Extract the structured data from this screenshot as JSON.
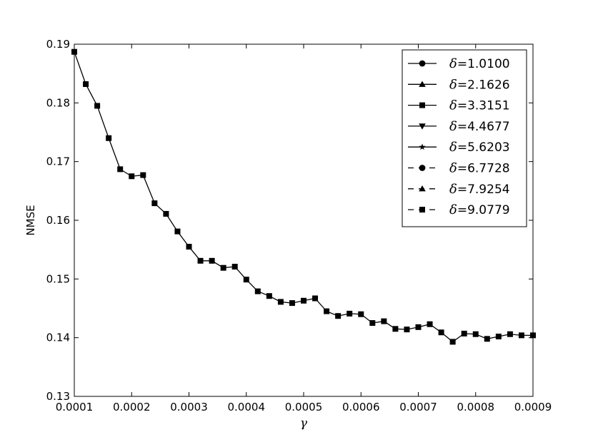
{
  "chart_data": {
    "type": "line",
    "title": "",
    "xlabel": "γ",
    "ylabel": "NMSE",
    "xlim": [
      0.0001,
      0.0009
    ],
    "ylim": [
      0.13,
      0.19
    ],
    "xticks": [
      "0.0001",
      "0.0002",
      "0.0003",
      "0.0004",
      "0.0005",
      "0.0006",
      "0.0007",
      "0.0008",
      "0.0009"
    ],
    "yticks": [
      "0.13",
      "0.14",
      "0.15",
      "0.16",
      "0.17",
      "0.18",
      "0.19"
    ],
    "grid": false,
    "legend_position": "top-right",
    "x": [
      0.0001,
      0.00012,
      0.00014,
      0.00016,
      0.00018,
      0.0002,
      0.00022,
      0.00024,
      0.00026,
      0.00028,
      0.0003,
      0.00032,
      0.00034,
      0.00036,
      0.00038,
      0.0004,
      0.00042,
      0.00044,
      0.00046,
      0.00048,
      0.0005,
      0.00052,
      0.00054,
      0.00056,
      0.00058,
      0.0006,
      0.00062,
      0.00064,
      0.00066,
      0.00068,
      0.0007,
      0.00072,
      0.00074,
      0.00076,
      0.00078,
      0.0008,
      0.00082,
      0.00084,
      0.00086,
      0.00088,
      0.0009
    ],
    "series": [
      {
        "name": "=1.0100",
        "delta_symbol": "δ",
        "marker": "circle",
        "linestyle": "solid"
      },
      {
        "name": "=2.1626",
        "delta_symbol": "δ",
        "marker": "triangle-up",
        "linestyle": "solid"
      },
      {
        "name": "=3.3151",
        "delta_symbol": "δ",
        "marker": "square",
        "linestyle": "solid"
      },
      {
        "name": "=4.4677",
        "delta_symbol": "δ",
        "marker": "triangle-down",
        "linestyle": "solid"
      },
      {
        "name": "=5.6203",
        "delta_symbol": "δ",
        "marker": "star",
        "linestyle": "solid"
      },
      {
        "name": "=6.7728",
        "delta_symbol": "δ",
        "marker": "circle",
        "linestyle": "dashed"
      },
      {
        "name": "=7.9254",
        "delta_symbol": "δ",
        "marker": "triangle-up",
        "linestyle": "dashed"
      },
      {
        "name": "=9.0779",
        "delta_symbol": "δ",
        "marker": "square",
        "linestyle": "dashed"
      }
    ],
    "values": [
      0.1887,
      0.1832,
      0.1795,
      0.174,
      0.1687,
      0.1675,
      0.1677,
      0.1629,
      0.1611,
      0.1581,
      0.1555,
      0.1531,
      0.1531,
      0.1519,
      0.1521,
      0.1499,
      0.1479,
      0.1471,
      0.1461,
      0.1459,
      0.1463,
      0.1467,
      0.1445,
      0.1437,
      0.1441,
      0.144,
      0.1425,
      0.1428,
      0.1415,
      0.1414,
      0.1418,
      0.1423,
      0.1409,
      0.1393,
      0.1407,
      0.1406,
      0.1398,
      0.1402,
      0.1406,
      0.1404,
      0.1404
    ],
    "note_overlap": "all series overlap; only the square-marker line is visible"
  }
}
